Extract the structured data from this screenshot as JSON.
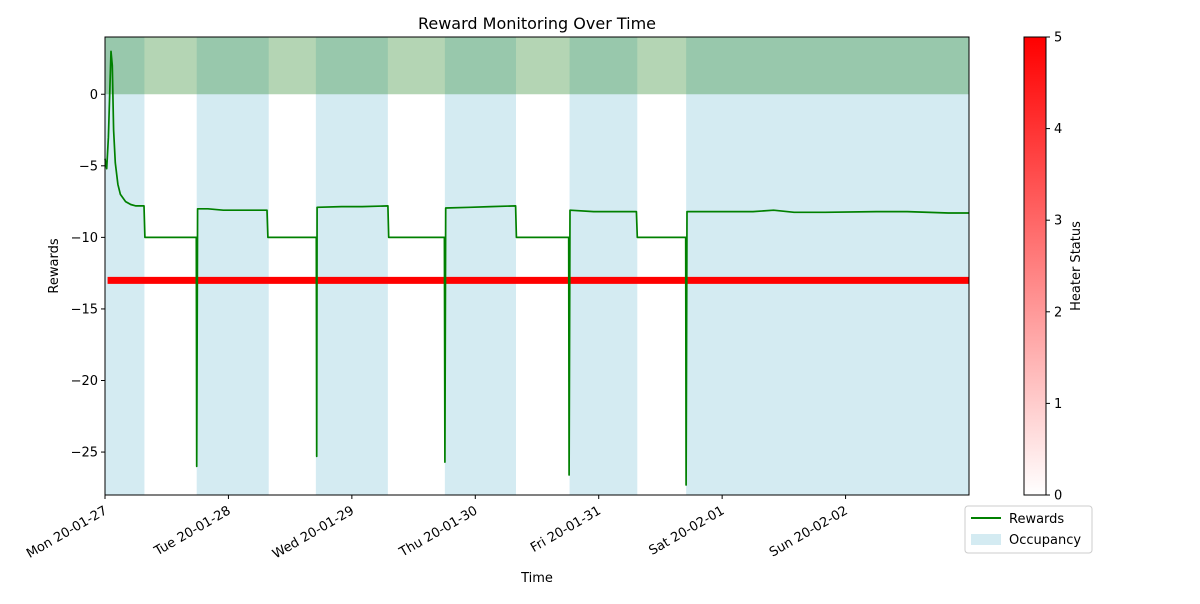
{
  "chart_data": {
    "type": "line",
    "title": "Reward Monitoring Over Time",
    "xlabel": "Time",
    "ylabel": "Rewards",
    "colorbar_label": "Heater Status",
    "colors": {
      "rewards": "#008000",
      "occupancy": "#add8e6",
      "green_band": "#2e8b2e",
      "heater": "#ff0000"
    },
    "xlim": [
      "2020-01-27 00:00",
      "2020-02-03 00:00"
    ],
    "ylim": [
      -28,
      4
    ],
    "yticks": [
      0,
      -5,
      -10,
      -15,
      -20,
      -25
    ],
    "xtick_labels": [
      {
        "t": "2020-01-27 00:00",
        "label": "Mon 20-01-27"
      },
      {
        "t": "2020-01-28 00:00",
        "label": "Tue 20-01-28"
      },
      {
        "t": "2020-01-29 00:00",
        "label": "Wed 20-01-29"
      },
      {
        "t": "2020-01-30 00:00",
        "label": "Thu 20-01-30"
      },
      {
        "t": "2020-01-31 00:00",
        "label": "Fri 20-01-31"
      },
      {
        "t": "2020-02-01 00:00",
        "label": "Sat 20-02-01"
      },
      {
        "t": "2020-02-02 00:00",
        "label": "Sun 20-02-02"
      }
    ],
    "colorbar": {
      "min": 0,
      "max": 5,
      "ticks": [
        0,
        1,
        2,
        3,
        4,
        5
      ],
      "colors": [
        "#ffffff",
        "#ff0000"
      ]
    },
    "legend": {
      "position": "outside-bottom-right",
      "items": [
        {
          "label": "Rewards",
          "kind": "line",
          "color": "#008000"
        },
        {
          "label": "Occupancy",
          "kind": "patch",
          "color": "#add8e6"
        }
      ]
    },
    "occupancy_periods": [
      [
        "2020-01-27 00:00",
        "2020-01-27 07:40"
      ],
      [
        "2020-01-27 17:50",
        "2020-01-28 07:50"
      ],
      [
        "2020-01-28 17:00",
        "2020-01-29 07:00"
      ],
      [
        "2020-01-29 18:05",
        "2020-01-30 07:55"
      ],
      [
        "2020-01-30 18:20",
        "2020-01-31 07:30"
      ],
      [
        "2020-01-31 17:00",
        "2020-02-03 00:00"
      ]
    ],
    "reward_band": [
      0,
      4
    ],
    "heater_status": {
      "y": -13,
      "status": 5,
      "x": [
        "2020-01-27 00:30",
        "2020-02-03 00:00"
      ]
    },
    "series": [
      {
        "name": "Rewards",
        "x": [
          "2020-01-27 00:00",
          "2020-01-27 00:20",
          "2020-01-27 00:40",
          "2020-01-27 01:10",
          "2020-01-27 01:25",
          "2020-01-27 01:40",
          "2020-01-27 02:00",
          "2020-01-27 02:30",
          "2020-01-27 03:00",
          "2020-01-27 04:00",
          "2020-01-27 05:00",
          "2020-01-27 06:00",
          "2020-01-27 07:35",
          "2020-01-27 07:45",
          "2020-01-27 17:35",
          "2020-01-27 17:45",
          "2020-01-27 17:50",
          "2020-01-27 18:00",
          "2020-01-27 20:00",
          "2020-01-27 23:00",
          "2020-01-28 02:00",
          "2020-01-28 07:30",
          "2020-01-28 07:40",
          "2020-01-28 17:00",
          "2020-01-28 17:05",
          "2020-01-28 17:10",
          "2020-01-28 17:15",
          "2020-01-28 22:00",
          "2020-01-29 02:00",
          "2020-01-29 07:00",
          "2020-01-29 07:10",
          "2020-01-29 17:55",
          "2020-01-29 18:00",
          "2020-01-29 18:05",
          "2020-01-29 18:15",
          "2020-01-29 23:00",
          "2020-01-30 03:00",
          "2020-01-30 07:50",
          "2020-01-30 08:00",
          "2020-01-30 18:05",
          "2020-01-30 18:10",
          "2020-01-30 18:15",
          "2020-01-30 18:25",
          "2020-01-30 23:00",
          "2020-01-31 03:00",
          "2020-01-31 07:20",
          "2020-01-31 07:30",
          "2020-01-31 16:50",
          "2020-01-31 16:55",
          "2020-01-31 17:00",
          "2020-01-31 17:10",
          "2020-01-31 22:00",
          "2020-02-01 06:00",
          "2020-02-01 10:00",
          "2020-02-01 14:00",
          "2020-02-01 20:00",
          "2020-02-02 06:00",
          "2020-02-02 12:00",
          "2020-02-02 20:00",
          "2020-02-03 00:00"
        ],
        "y": [
          -4.5,
          -5.2,
          -3.0,
          3.0,
          2.0,
          -2.5,
          -4.8,
          -6.3,
          -7.0,
          -7.5,
          -7.7,
          -7.8,
          -7.8,
          -10.0,
          -10.0,
          -10.0,
          -26.0,
          -8.0,
          -8.0,
          -8.1,
          -8.1,
          -8.1,
          -10.0,
          -10.0,
          -10.0,
          -25.3,
          -7.9,
          -7.85,
          -7.85,
          -7.8,
          -10.0,
          -10.0,
          -10.0,
          -25.7,
          -7.95,
          -7.9,
          -7.85,
          -7.8,
          -10.0,
          -10.0,
          -10.0,
          -26.6,
          -8.1,
          -8.2,
          -8.2,
          -8.2,
          -10.0,
          -10.0,
          -10.0,
          -27.3,
          -8.2,
          -8.2,
          -8.2,
          -8.1,
          -8.25,
          -8.25,
          -8.2,
          -8.2,
          -8.3,
          -8.3
        ]
      }
    ]
  }
}
